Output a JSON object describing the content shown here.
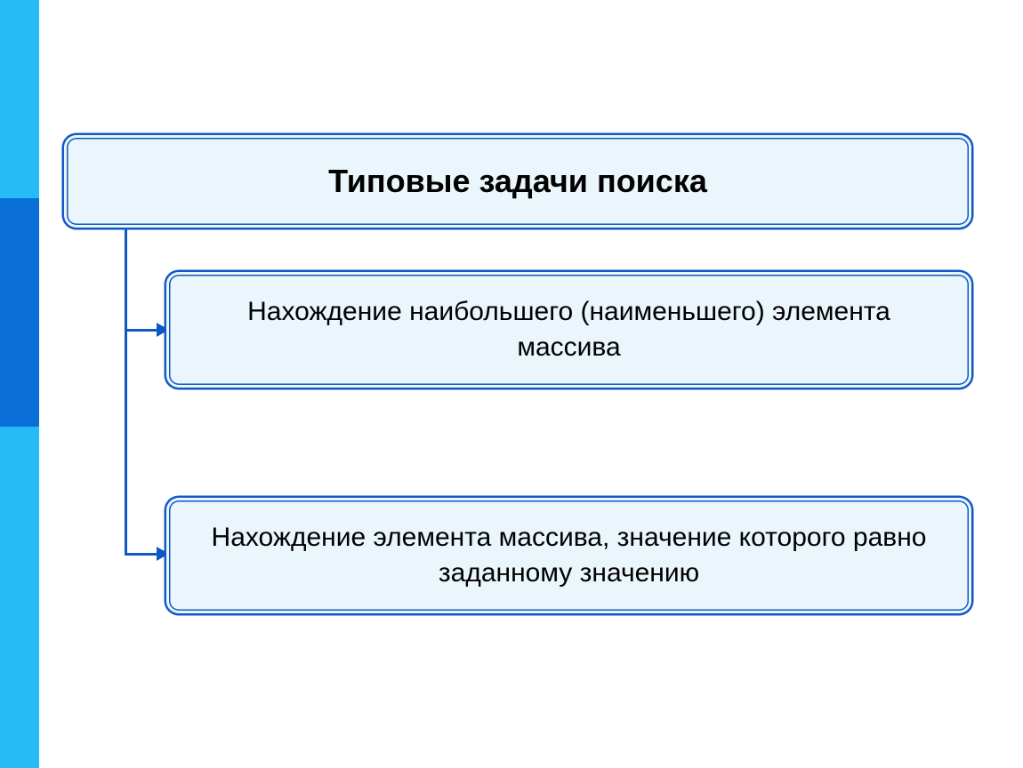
{
  "diagram": {
    "type": "tree",
    "background_color": "#ffffff",
    "side_stripe": {
      "outer_color": "#26baf6",
      "inner_color": "#0a6fd9"
    },
    "box_style": {
      "fill": "#eaf6fb",
      "border_color": "#1158c7",
      "border_style": "double",
      "border_radius": 14
    },
    "connector": {
      "color": "#1158c7",
      "width": 3,
      "arrow": true
    },
    "root": {
      "label": "Типовые задачи поиска",
      "font_size": 36,
      "font_weight": 700
    },
    "children": [
      {
        "label": "Нахождение наибольшего (наименьшего) элемента массива",
        "font_size": 30,
        "font_weight": 400
      },
      {
        "label": "Нахождение элемента массива, значение которого равно заданному значению",
        "font_size": 30,
        "font_weight": 400
      }
    ]
  }
}
